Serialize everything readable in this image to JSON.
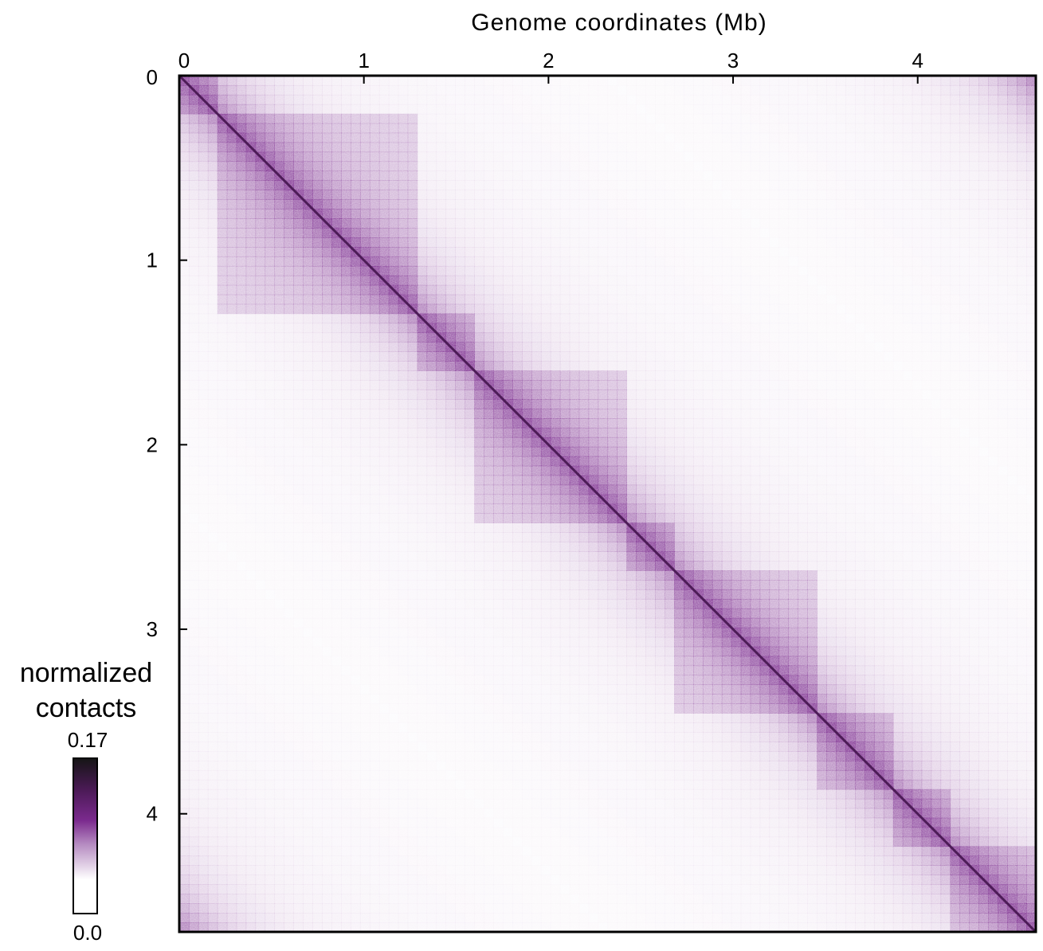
{
  "chart_data": {
    "type": "heatmap",
    "title": "",
    "xlabel": "Genome coordinates (Mb)",
    "ylabel": "",
    "x_axis_position": "top",
    "xlim": [
      0,
      4.64
    ],
    "ylim": [
      0,
      4.64
    ],
    "x_ticks": [
      0,
      1,
      2,
      3,
      4
    ],
    "y_ticks": [
      0,
      1,
      2,
      3,
      4
    ],
    "x_tick_labels": [
      "0",
      "1",
      "2",
      "3",
      "4"
    ],
    "y_tick_labels": [
      "0",
      "1",
      "2",
      "3",
      "4"
    ],
    "colorbar": {
      "title_line1": "normalized",
      "title_line2": "contacts",
      "max_label": "0.17",
      "min_label": "0.0",
      "min": 0.0,
      "max": 0.17,
      "colors": [
        "#ffffff",
        "#7b2a8e",
        "#1a1a1a"
      ],
      "placement": "left-bottom"
    },
    "domain_boundaries_mb": [
      0,
      0.2,
      1.3,
      1.58,
      2.4,
      2.68,
      3.44,
      3.85,
      4.2,
      4.64
    ],
    "base_color": "#7b2a8e",
    "grid": false
  }
}
